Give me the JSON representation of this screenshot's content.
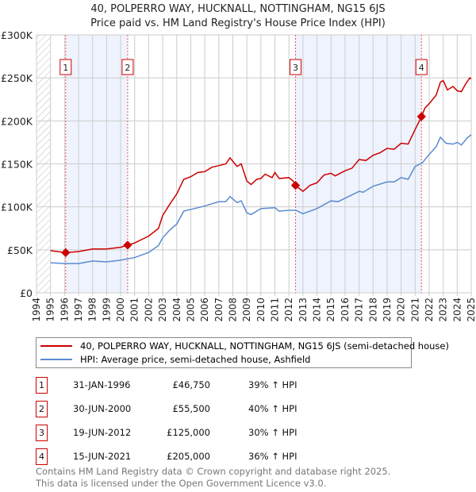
{
  "title": "40, POLPERRO WAY, HUCKNALL, NOTTINGHAM, NG15 6JS",
  "subtitle": "Price paid vs. HM Land Registry's House Price Index (HPI)",
  "colors": {
    "property": "#cc0000",
    "hpi": "#5b8bd0",
    "shade": "#eef3fd"
  },
  "chart_data": {
    "type": "line",
    "xlim": [
      1994,
      2025
    ],
    "ylim": [
      0,
      300000
    ],
    "x_ticks": [
      "1994",
      "1995",
      "1996",
      "1997",
      "1998",
      "1999",
      "2000",
      "2001",
      "2002",
      "2003",
      "2004",
      "2005",
      "2006",
      "2007",
      "2008",
      "2009",
      "2010",
      "2011",
      "2012",
      "2013",
      "2014",
      "2015",
      "2016",
      "2017",
      "2018",
      "2019",
      "2020",
      "2021",
      "2022",
      "2023",
      "2024",
      "2025"
    ],
    "y_ticks": [
      {
        "v": 0,
        "label": "£0"
      },
      {
        "v": 50000,
        "label": "£50K"
      },
      {
        "v": 100000,
        "label": "£100K"
      },
      {
        "v": 150000,
        "label": "£150K"
      },
      {
        "v": 200000,
        "label": "£200K"
      },
      {
        "v": 250000,
        "label": "£250K"
      },
      {
        "v": 300000,
        "label": "£300K"
      }
    ],
    "grid": true,
    "shaded_periods": [
      [
        1996.08,
        2000.5
      ],
      [
        2012.47,
        2021.45
      ]
    ],
    "series": [
      {
        "name": "40, POLPERRO WAY, HUCKNALL, NOTTINGHAM, NG15 6JS (semi-detached house)",
        "points": [
          [
            1995,
            49
          ],
          [
            1995.5,
            48
          ],
          [
            1996.08,
            46.75
          ],
          [
            1997,
            48
          ],
          [
            1998,
            51
          ],
          [
            1999,
            51
          ],
          [
            2000,
            53
          ],
          [
            2000.5,
            55.5
          ],
          [
            2001,
            58
          ],
          [
            2002,
            66
          ],
          [
            2002.7,
            75
          ],
          [
            2003,
            90
          ],
          [
            2003.5,
            103
          ],
          [
            2004,
            115
          ],
          [
            2004.5,
            132
          ],
          [
            2005,
            135
          ],
          [
            2005.5,
            140
          ],
          [
            2006,
            141
          ],
          [
            2006.5,
            146
          ],
          [
            2007,
            148
          ],
          [
            2007.5,
            150
          ],
          [
            2007.8,
            157
          ],
          [
            2008.3,
            147
          ],
          [
            2008.6,
            150
          ],
          [
            2009,
            130
          ],
          [
            2009.3,
            126
          ],
          [
            2009.7,
            132
          ],
          [
            2010,
            133
          ],
          [
            2010.3,
            138
          ],
          [
            2010.8,
            134
          ],
          [
            2011,
            140
          ],
          [
            2011.3,
            133
          ],
          [
            2012,
            134
          ],
          [
            2012.3,
            130
          ],
          [
            2012.47,
            125
          ],
          [
            2013,
            118
          ],
          [
            2013.5,
            125
          ],
          [
            2014,
            128
          ],
          [
            2014.5,
            137
          ],
          [
            2015,
            139
          ],
          [
            2015.3,
            136
          ],
          [
            2016,
            142
          ],
          [
            2016.5,
            145
          ],
          [
            2017,
            155
          ],
          [
            2017.5,
            154
          ],
          [
            2018,
            160
          ],
          [
            2018.5,
            163
          ],
          [
            2019,
            168
          ],
          [
            2019.5,
            167
          ],
          [
            2020,
            174
          ],
          [
            2020.5,
            173
          ],
          [
            2021,
            190
          ],
          [
            2021.45,
            205
          ],
          [
            2021.7,
            215
          ],
          [
            2022,
            220
          ],
          [
            2022.5,
            230
          ],
          [
            2022.8,
            245
          ],
          [
            2023,
            247
          ],
          [
            2023.3,
            236
          ],
          [
            2023.7,
            240
          ],
          [
            2024,
            235
          ],
          [
            2024.3,
            234
          ],
          [
            2024.6,
            243
          ],
          [
            2024.9,
            250
          ],
          [
            2025,
            249
          ]
        ]
      },
      {
        "name": "HPI: Average price, semi-detached house, Ashfield",
        "points": [
          [
            1995,
            35
          ],
          [
            1996,
            34
          ],
          [
            1997,
            34
          ],
          [
            1998,
            37
          ],
          [
            1999,
            36
          ],
          [
            2000,
            38
          ],
          [
            2001,
            41
          ],
          [
            2002,
            47
          ],
          [
            2002.7,
            55
          ],
          [
            2003,
            64
          ],
          [
            2003.5,
            73
          ],
          [
            2004,
            80
          ],
          [
            2004.5,
            95
          ],
          [
            2005,
            97
          ],
          [
            2006,
            101
          ],
          [
            2007,
            106
          ],
          [
            2007.5,
            106
          ],
          [
            2007.8,
            112
          ],
          [
            2008.3,
            105
          ],
          [
            2008.6,
            107
          ],
          [
            2009,
            93
          ],
          [
            2009.3,
            91
          ],
          [
            2010,
            98
          ],
          [
            2011,
            99
          ],
          [
            2011.3,
            95
          ],
          [
            2012,
            96
          ],
          [
            2012.5,
            96
          ],
          [
            2013,
            92
          ],
          [
            2014,
            98
          ],
          [
            2015,
            107
          ],
          [
            2015.5,
            106
          ],
          [
            2016,
            110
          ],
          [
            2017,
            118
          ],
          [
            2017.3,
            117
          ],
          [
            2018,
            124
          ],
          [
            2019,
            129
          ],
          [
            2019.5,
            129
          ],
          [
            2020,
            134
          ],
          [
            2020.5,
            132
          ],
          [
            2021,
            147
          ],
          [
            2021.5,
            151
          ],
          [
            2022,
            161
          ],
          [
            2022.5,
            170
          ],
          [
            2022.8,
            181
          ],
          [
            2023.2,
            174
          ],
          [
            2023.7,
            173
          ],
          [
            2024,
            175
          ],
          [
            2024.3,
            172
          ],
          [
            2024.7,
            180
          ],
          [
            2025,
            184
          ]
        ]
      }
    ],
    "sales": [
      {
        "label": "1",
        "x": 1996.08,
        "y": 46750
      },
      {
        "label": "2",
        "x": 2000.5,
        "y": 55500
      },
      {
        "label": "3",
        "x": 2012.47,
        "y": 125000
      },
      {
        "label": "4",
        "x": 2021.45,
        "y": 205000
      }
    ]
  },
  "legend": {
    "property": "40, POLPERRO WAY, HUCKNALL, NOTTINGHAM, NG15 6JS (semi-detached house)",
    "hpi": "HPI: Average price, semi-detached house, Ashfield"
  },
  "transactions": [
    {
      "num": "1",
      "date": "31-JAN-1996",
      "price": "£46,750",
      "hpi": "39% ↑ HPI"
    },
    {
      "num": "2",
      "date": "30-JUN-2000",
      "price": "£55,500",
      "hpi": "40% ↑ HPI"
    },
    {
      "num": "3",
      "date": "19-JUN-2012",
      "price": "£125,000",
      "hpi": "30% ↑ HPI"
    },
    {
      "num": "4",
      "date": "15-JUN-2021",
      "price": "£205,000",
      "hpi": "36% ↑ HPI"
    }
  ],
  "footer": {
    "line1": "Contains HM Land Registry data © Crown copyright and database right 2025.",
    "line2": "This data is licensed under the Open Government Licence v3.0."
  }
}
